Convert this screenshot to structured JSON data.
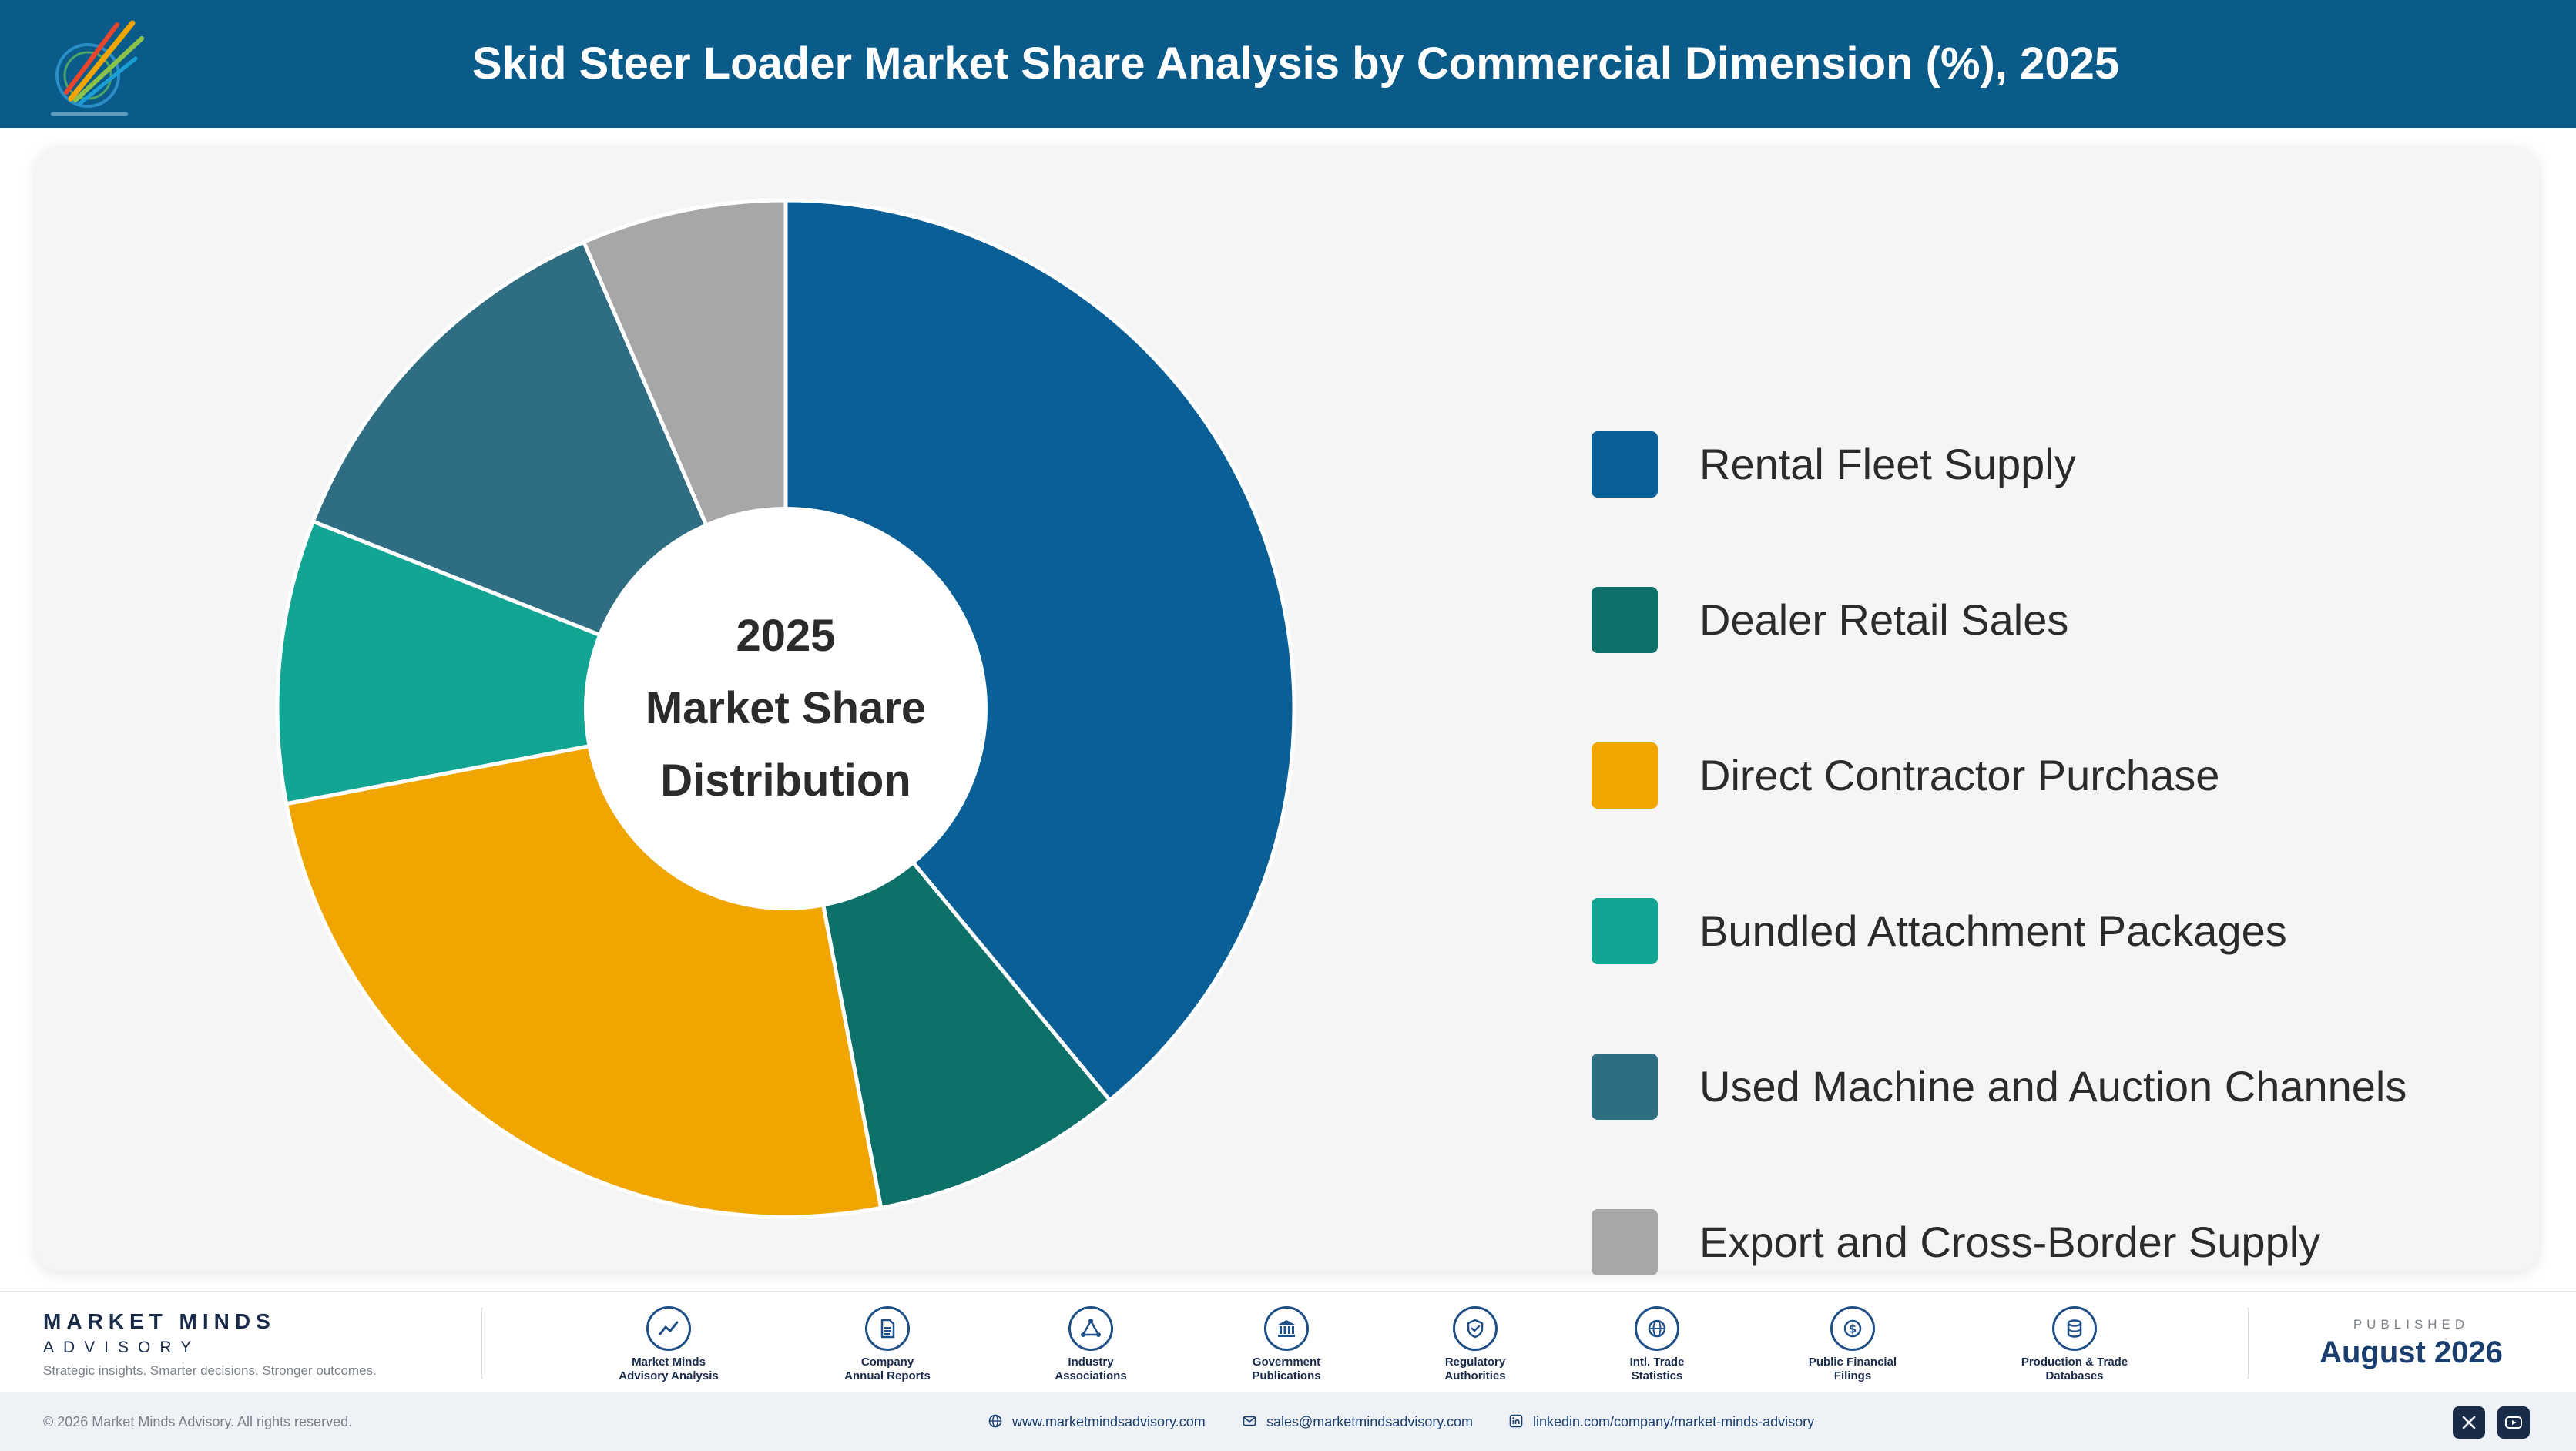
{
  "header": {
    "title": "Skid Steer Loader Market Share Analysis by Commercial Dimension (%), 2025",
    "color": "#0a5a8a"
  },
  "chart_data": {
    "type": "pie",
    "variant": "donut",
    "title": "Skid Steer Loader Market Share Analysis by Commercial Dimension (%), 2025",
    "center_text": [
      "2025",
      "Market Share",
      "Distribution"
    ],
    "legend_position": "right",
    "categories": [
      "Rental Fleet Supply",
      "Dealer Retail Sales",
      "Direct Contractor Purchase",
      "Bundled Attachment Packages",
      "Used Machine and Auction Channels",
      "Export and Cross-Border Supply"
    ],
    "values": [
      39,
      8,
      25,
      9,
      12.5,
      6.5
    ],
    "colors": [
      "#0a6096",
      "#0e7169",
      "#f0a500",
      "#13a594",
      "#2f6e82",
      "#a7a7a7"
    ]
  },
  "footer": {
    "brand_name": "MARKET MINDS",
    "brand_sub": "ADVISORY",
    "brand_tagline": "Strategic insights. Smarter decisions. Stronger outcomes.",
    "sources": [
      {
        "icon": "trend-chart-icon",
        "label_line1": "Market Minds",
        "label_line2": "Advisory Analysis"
      },
      {
        "icon": "document-icon",
        "label_line1": "Company",
        "label_line2": "Annual Reports"
      },
      {
        "icon": "network-icon",
        "label_line1": "Industry",
        "label_line2": "Associations"
      },
      {
        "icon": "government-building-icon",
        "label_line1": "Government",
        "label_line2": "Publications"
      },
      {
        "icon": "shield-check-icon",
        "label_line1": "Regulatory",
        "label_line2": "Authorities"
      },
      {
        "icon": "globe-icon",
        "label_line1": "Intl. Trade",
        "label_line2": "Statistics"
      },
      {
        "icon": "dollar-coin-icon",
        "label_line1": "Public Financial",
        "label_line2": "Filings"
      },
      {
        "icon": "database-icon",
        "label_line1": "Production & Trade",
        "label_line2": "Databases"
      }
    ],
    "published_label": "PUBLISHED",
    "published_date": "August 2026",
    "copyright": "© 2026 Market Minds Advisory. All rights reserved.",
    "website": "www.marketmindsadvisory.com",
    "email": "sales@marketmindsadvisory.com",
    "linkedin": "linkedin.com/company/market-minds-advisory"
  }
}
